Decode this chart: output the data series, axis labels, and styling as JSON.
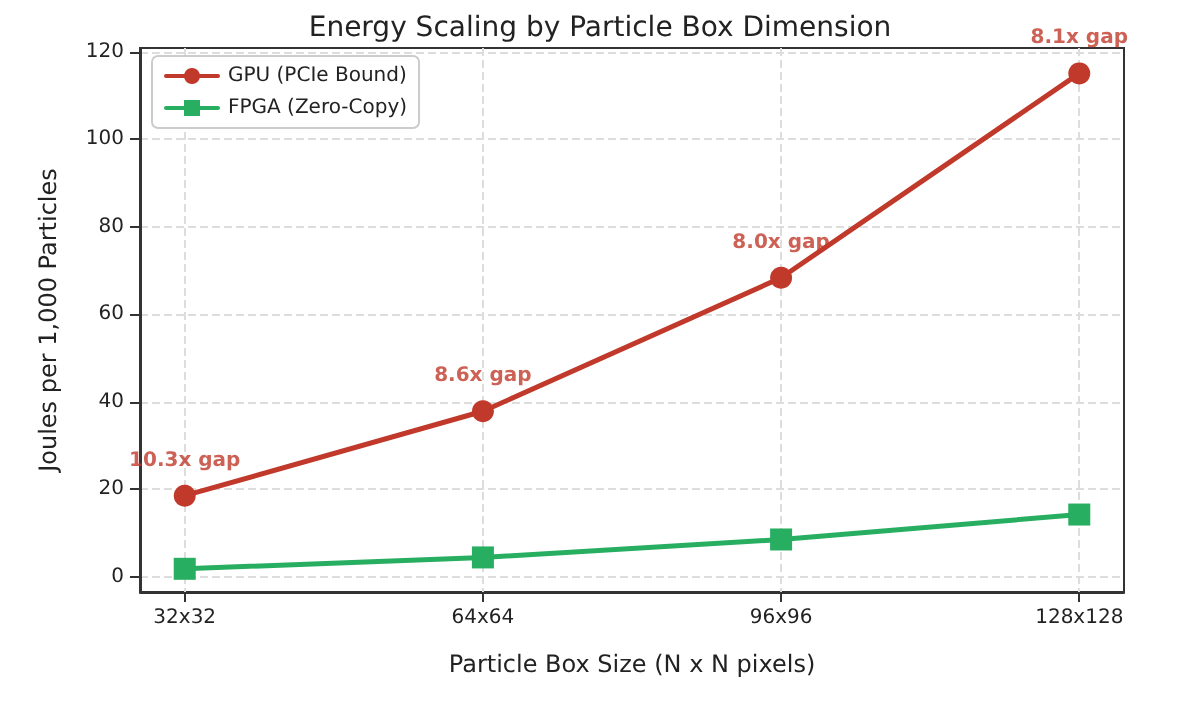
{
  "chart_data": {
    "type": "line",
    "title": "Energy Scaling by Particle Box Dimension",
    "xlabel": "Particle Box Size (N x N pixels)",
    "ylabel": "Joules per 1,000 Particles",
    "categories": [
      "32x32",
      "64x64",
      "96x96",
      "128x128"
    ],
    "series": [
      {
        "name": "GPU (PCIe Bound)",
        "color": "#c0392b",
        "marker": "circle",
        "values": [
          18.5,
          37.8,
          68.3,
          115
        ]
      },
      {
        "name": "FPGA (Zero-Copy)",
        "color": "#27ae60",
        "marker": "square",
        "values": [
          1.8,
          4.4,
          8.5,
          14.2
        ]
      }
    ],
    "annotations": [
      {
        "text": "10.3x gap",
        "x": "32x32",
        "y": 18.5
      },
      {
        "text": "8.6x gap",
        "x": "64x64",
        "y": 37.8
      },
      {
        "text": "8.0x gap",
        "x": "96x96",
        "y": 68.3
      },
      {
        "text": "8.1x gap",
        "x": "128x128",
        "y": 115
      }
    ],
    "ylim": [
      -3.5,
      120.8
    ],
    "yticks": [
      0,
      20,
      40,
      60,
      80,
      100,
      120
    ],
    "grid": true,
    "legend": "top left",
    "line_style": "solid"
  }
}
